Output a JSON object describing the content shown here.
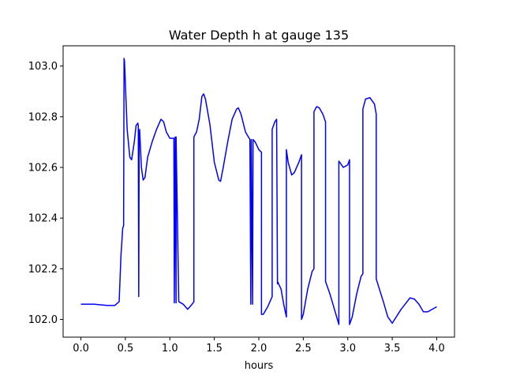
{
  "chart_data": {
    "type": "line",
    "title": "Water Depth h at gauge 135",
    "xlabel": "hours",
    "ylabel": "",
    "xlim": [
      -0.2,
      4.2
    ],
    "ylim": [
      101.93,
      103.08
    ],
    "xticks": [
      0.0,
      0.5,
      1.0,
      1.5,
      2.0,
      2.5,
      3.0,
      3.5,
      4.0
    ],
    "xtick_labels": [
      "0.0",
      "0.5",
      "1.0",
      "1.5",
      "2.0",
      "2.5",
      "3.0",
      "3.5",
      "4.0"
    ],
    "yticks": [
      102.0,
      102.2,
      102.4,
      102.6,
      102.8,
      103.0
    ],
    "ytick_labels": [
      "102.0",
      "102.2",
      "102.4",
      "102.6",
      "102.8",
      "103.0"
    ],
    "grid": false,
    "series": [
      {
        "color": "#0000ff",
        "x": [
          0.0,
          0.15,
          0.3,
          0.38,
          0.43,
          0.45,
          0.47,
          0.48,
          0.485,
          0.49,
          0.52,
          0.55,
          0.57,
          0.6,
          0.62,
          0.64,
          0.645,
          0.65,
          0.655,
          0.66,
          0.68,
          0.7,
          0.72,
          0.75,
          0.8,
          0.85,
          0.9,
          0.93,
          0.96,
          1.0,
          1.03,
          1.045,
          1.05,
          1.06,
          1.07,
          1.07,
          1.1,
          1.15,
          1.2,
          1.25,
          1.27,
          1.27,
          1.3,
          1.33,
          1.36,
          1.38,
          1.4,
          1.45,
          1.5,
          1.55,
          1.57,
          1.6,
          1.65,
          1.7,
          1.75,
          1.77,
          1.8,
          1.85,
          1.9,
          1.91,
          1.915,
          1.93,
          1.935,
          1.935,
          1.96,
          2.0,
          2.03,
          2.03,
          2.05,
          2.1,
          2.15,
          2.15,
          2.18,
          2.2,
          2.21,
          2.21,
          2.25,
          2.28,
          2.31,
          2.31,
          2.33,
          2.37,
          2.4,
          2.45,
          2.48,
          2.48,
          2.5,
          2.55,
          2.6,
          2.62,
          2.62,
          2.65,
          2.68,
          2.72,
          2.75,
          2.75,
          2.8,
          2.85,
          2.9,
          2.9,
          2.95,
          3.0,
          3.02,
          3.02,
          3.05,
          3.1,
          3.15,
          3.17,
          3.17,
          3.2,
          3.25,
          3.3,
          3.32,
          3.32,
          3.4,
          3.45,
          3.5,
          3.6,
          3.7,
          3.75,
          3.8,
          3.85,
          3.9,
          4.0
        ],
        "y": [
          102.06,
          102.06,
          102.055,
          102.055,
          102.07,
          102.25,
          102.36,
          102.37,
          103.03,
          103.02,
          102.75,
          102.64,
          102.63,
          102.7,
          102.765,
          102.775,
          102.765,
          102.09,
          102.73,
          102.75,
          102.6,
          102.55,
          102.56,
          102.64,
          102.7,
          102.75,
          102.79,
          102.78,
          102.74,
          102.715,
          102.715,
          102.715,
          102.065,
          102.72,
          102.065,
          102.72,
          102.07,
          102.06,
          102.04,
          102.06,
          102.07,
          102.72,
          102.74,
          102.79,
          102.88,
          102.89,
          102.87,
          102.77,
          102.62,
          102.55,
          102.545,
          102.6,
          102.7,
          102.79,
          102.83,
          102.835,
          102.81,
          102.74,
          102.71,
          102.06,
          102.71,
          102.06,
          102.71,
          102.71,
          102.7,
          102.67,
          102.66,
          102.02,
          102.02,
          102.05,
          102.09,
          102.75,
          102.78,
          102.79,
          102.14,
          102.15,
          102.12,
          102.06,
          102.01,
          102.67,
          102.62,
          102.57,
          102.58,
          102.62,
          102.65,
          102.0,
          102.02,
          102.12,
          102.19,
          102.2,
          102.82,
          102.84,
          102.835,
          102.81,
          102.78,
          102.15,
          102.1,
          102.04,
          101.98,
          102.625,
          102.6,
          102.61,
          102.63,
          101.98,
          102.01,
          102.1,
          102.17,
          102.18,
          102.83,
          102.87,
          102.875,
          102.85,
          102.81,
          102.16,
          102.07,
          102.01,
          101.985,
          102.04,
          102.085,
          102.08,
          102.06,
          102.03,
          102.03,
          102.05
        ]
      }
    ]
  }
}
